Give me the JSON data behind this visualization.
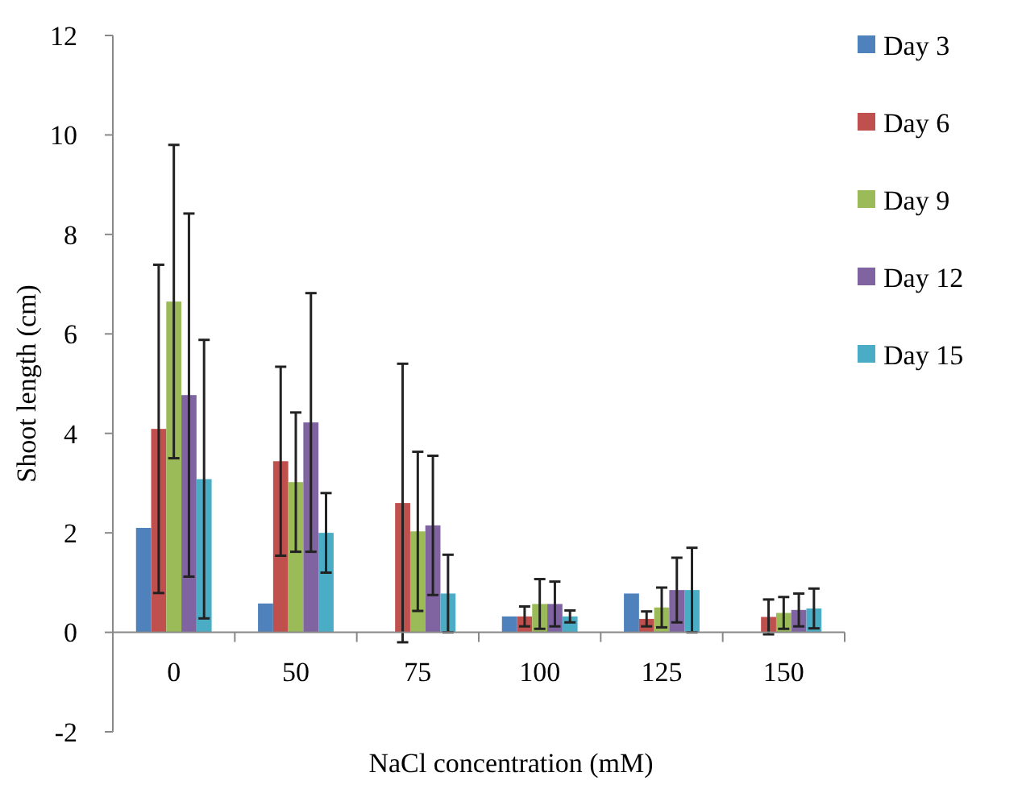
{
  "chart_data": {
    "type": "bar",
    "xlabel": "NaCl concentration (mM)",
    "ylabel": "Shoot length (cm)",
    "categories": [
      "0",
      "50",
      "75",
      "100",
      "125",
      "150"
    ],
    "ylim": [
      -2,
      12
    ],
    "yticks": [
      -2,
      0,
      2,
      4,
      6,
      8,
      10,
      12
    ],
    "legend": "right",
    "grid": false,
    "series": [
      {
        "name": "Day 3",
        "color": "#4f81bd",
        "values": [
          2.1,
          0.58,
          0,
          0.32,
          0.78,
          0
        ]
      },
      {
        "name": "Day 6",
        "color": "#c0504d",
        "values": [
          4.09,
          3.44,
          2.6,
          0.32,
          0.27,
          0.31
        ],
        "errors": [
          3.3,
          1.9,
          2.8,
          0.2,
          0.15,
          0.35
        ]
      },
      {
        "name": "Day 9",
        "color": "#9bbb59",
        "values": [
          6.65,
          3.02,
          2.03,
          0.57,
          0.5,
          0.39
        ],
        "errors": [
          3.15,
          1.4,
          1.6,
          0.5,
          0.4,
          0.32
        ]
      },
      {
        "name": "Day 12",
        "color": "#8064a2",
        "values": [
          4.77,
          4.22,
          2.15,
          0.57,
          0.85,
          0.45
        ],
        "errors": [
          3.65,
          2.6,
          1.4,
          0.45,
          0.65,
          0.33
        ]
      },
      {
        "name": "Day 15",
        "color": "#4bacc6",
        "values": [
          3.08,
          2.0,
          0.78,
          0.32,
          0.85,
          0.48
        ],
        "errors": [
          2.8,
          0.8,
          0.78,
          0.12,
          0.85,
          0.4
        ]
      }
    ]
  }
}
